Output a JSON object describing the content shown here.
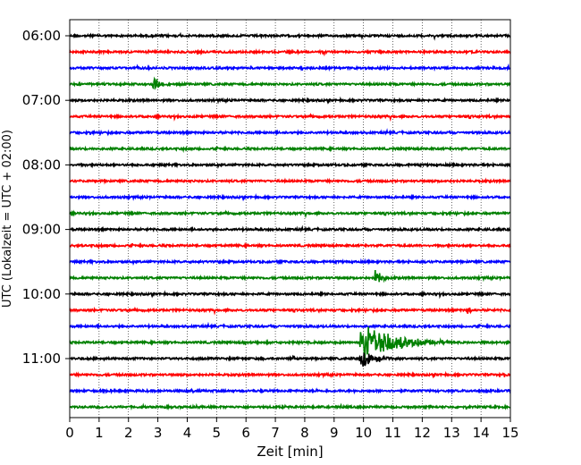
{
  "chart_data": {
    "type": "line",
    "subtype": "helicorder",
    "title": "",
    "xlabel": "Zeit  [min]",
    "ylabel": "UTC (Lokalzeit = UTC + 02:00)",
    "xlim": [
      0,
      15
    ],
    "x_ticks": [
      "0",
      "1",
      "2",
      "3",
      "4",
      "5",
      "6",
      "7",
      "8",
      "9",
      "10",
      "11",
      "12",
      "13",
      "14",
      "15"
    ],
    "y_tick_labels": [
      {
        "row": 0,
        "label": "06:00"
      },
      {
        "row": 4,
        "label": "07:00"
      },
      {
        "row": 8,
        "label": "08:00"
      },
      {
        "row": 12,
        "label": "09:00"
      },
      {
        "row": 16,
        "label": "10:00"
      },
      {
        "row": 20,
        "label": "11:00"
      }
    ],
    "grid": "vertical-dotted",
    "color_cycle": [
      "#000000",
      "#ff0000",
      "#0000ff",
      "#008000"
    ],
    "row_start_times_utc": [
      "06:00",
      "06:15",
      "06:30",
      "06:45",
      "07:00",
      "07:15",
      "07:30",
      "07:45",
      "08:00",
      "08:15",
      "08:30",
      "08:45",
      "09:00",
      "09:15",
      "09:30",
      "09:45",
      "10:00",
      "10:15",
      "10:30",
      "10:45",
      "11:00",
      "11:15",
      "11:30",
      "11:45"
    ],
    "events": [
      {
        "row": 3,
        "time_min": 2.85,
        "amplitude": 1.0,
        "duration_min": 0.5
      },
      {
        "row": 15,
        "time_min": 10.4,
        "amplitude": 1.5,
        "duration_min": 0.4
      },
      {
        "row": 17,
        "time_min": 13.55,
        "amplitude": 0.9,
        "duration_min": 0.15
      },
      {
        "row": 19,
        "time_min": 5.95,
        "amplitude": 0.6,
        "duration_min": 0.15
      },
      {
        "row": 19,
        "time_min": 9.9,
        "amplitude": 2.0,
        "duration_min": 3.0
      },
      {
        "row": 20,
        "time_min": 9.9,
        "amplitude": 0.9,
        "duration_min": 1.4
      },
      {
        "row": 20,
        "time_min": 7.6,
        "amplitude": 0.35,
        "duration_min": 0.2
      },
      {
        "row": 21,
        "time_min": 14.75,
        "amplitude": 0.5,
        "duration_min": 0.15
      }
    ]
  }
}
